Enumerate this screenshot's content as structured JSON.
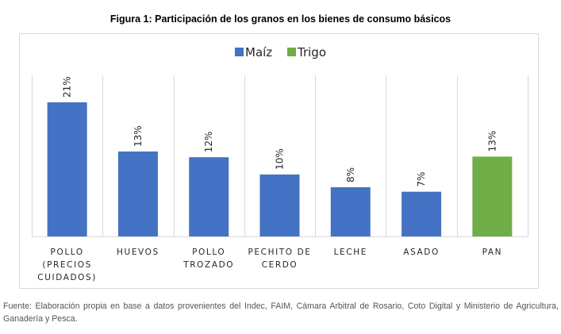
{
  "figure": {
    "title": "Figura 1: Participación de los granos en los bienes de consumo básicos",
    "footnote": "Fuente: Elaboración propia en base a datos provenientes del Indec, FAIM, Cámara Arbitral de Rosario, Coto Digital y Ministerio de Agricultura, Ganadería y Pesca."
  },
  "chart_data": {
    "type": "bar",
    "title": "Figura 1: Participación de los granos en los bienes de consumo básicos",
    "xlabel": "",
    "ylabel": "",
    "ylim": [
      0,
      25
    ],
    "grid": "vertical category separators",
    "legend_position": "top-center",
    "legend": [
      {
        "name": "Maíz",
        "color": "#4472C4"
      },
      {
        "name": "Trigo",
        "color": "#70AD47"
      }
    ],
    "categories": [
      [
        "POLLO",
        "(PRECIOS",
        "CUIDADOS)"
      ],
      [
        "HUEVOS"
      ],
      [
        "POLLO",
        "TROZADO"
      ],
      [
        "PECHITO DE",
        "CERDO"
      ],
      [
        "LECHE"
      ],
      [
        "ASADO"
      ],
      [
        "PAN"
      ]
    ],
    "values": [
      21,
      13.3,
      12.4,
      9.7,
      7.7,
      7.0,
      12.5
    ],
    "data_labels": [
      "21%",
      "13%",
      "12%",
      "10%",
      "8%",
      "7%",
      "13%"
    ],
    "series_of_bar": [
      "Maíz",
      "Maíz",
      "Maíz",
      "Maíz",
      "Maíz",
      "Maíz",
      "Trigo"
    ]
  }
}
